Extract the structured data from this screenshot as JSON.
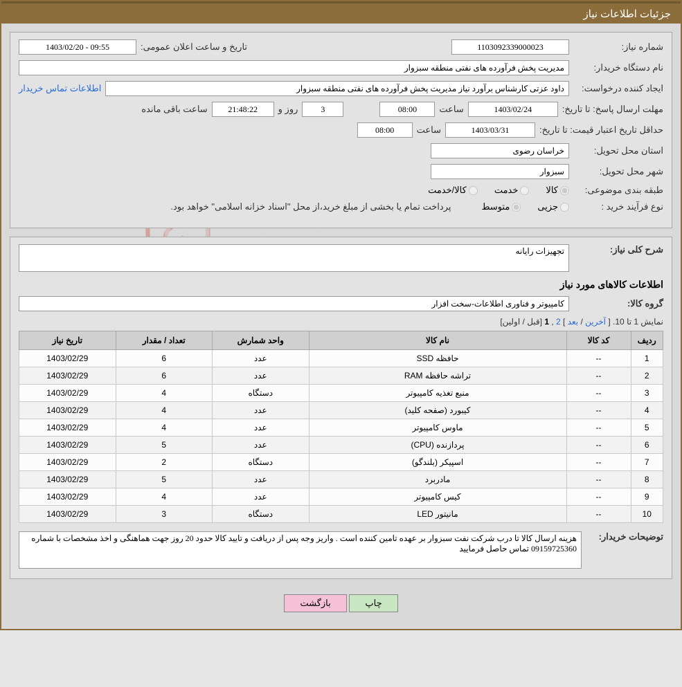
{
  "header": {
    "title": "جزئیات اطلاعات نیاز"
  },
  "info": {
    "need_no_label": "شماره نیاز:",
    "need_no": "1103092339000023",
    "announce_label": "تاریخ و ساعت اعلان عمومی:",
    "announce_value": "1403/02/20 - 09:55",
    "buyer_org_label": "نام دستگاه خریدار:",
    "buyer_org": "مدیریت پخش فرآورده های نفتی منطقه سبزوار",
    "requester_label": "ایجاد کننده درخواست:",
    "requester": "داود عزتی کارشناس برآورد نیاز مدیریت پخش فرآورده های نفتی منطقه سبزوار",
    "contact_link": "اطلاعات تماس خریدار",
    "deadline_label": "مهلت ارسال پاسخ: تا تاریخ:",
    "deadline_date": "1403/02/24",
    "time_label": "ساعت",
    "deadline_time": "08:00",
    "days_remain": "3",
    "days_label": "روز و",
    "clock": "21:48:22",
    "remain_label": "ساعت باقی مانده",
    "validity_label": "حداقل تاریخ اعتبار قیمت: تا تاریخ:",
    "validity_date": "1403/03/31",
    "validity_time": "08:00",
    "province_label": "استان محل تحویل:",
    "province": "خراسان رضوی",
    "city_label": "شهر محل تحویل:",
    "city": "سبزوار",
    "category_label": "طبقه بندی موضوعی:",
    "cat_goods": "کالا",
    "cat_service": "خدمت",
    "cat_both": "کالا/خدمت",
    "procure_label": "نوع فرآیند خرید :",
    "proc_minor": "جزیی",
    "proc_medium": "متوسط",
    "procure_note": "پرداخت تمام یا بخشی از مبلغ خرید،از محل \"اسناد خزانه اسلامی\" خواهد بود."
  },
  "need": {
    "desc_label": "شرح کلی نیاز:",
    "desc": "تجهیزات رایانه",
    "goods_title": "اطلاعات کالاهای مورد نیاز",
    "group_label": "گروه کالا:",
    "group": "کامپیوتر و فناوری اطلاعات-سخت افزار"
  },
  "pager": {
    "text_pre": "نمایش 1 تا 10. [ ",
    "last": "آخرین",
    "sep1": " / ",
    "next": "بعد",
    "sep2": " ] ",
    "p2": "2",
    "comma": " ,",
    "p1": "1",
    "text_post": " [قبل / اولین]"
  },
  "table": {
    "cols": [
      "ردیف",
      "کد کالا",
      "نام کالا",
      "واحد شمارش",
      "تعداد / مقدار",
      "تاریخ نیاز"
    ],
    "rows": [
      [
        "1",
        "--",
        "حافظه SSD",
        "عدد",
        "6",
        "1403/02/29"
      ],
      [
        "2",
        "--",
        "تراشه حافظه RAM",
        "عدد",
        "6",
        "1403/02/29"
      ],
      [
        "3",
        "--",
        "منبع تغذیه کامپیوتر",
        "دستگاه",
        "4",
        "1403/02/29"
      ],
      [
        "4",
        "--",
        "کیبورد (صفحه کلید)",
        "عدد",
        "4",
        "1403/02/29"
      ],
      [
        "5",
        "--",
        "ماوس کامپیوتر",
        "عدد",
        "4",
        "1403/02/29"
      ],
      [
        "6",
        "--",
        "پردازنده (CPU)",
        "عدد",
        "5",
        "1403/02/29"
      ],
      [
        "7",
        "--",
        "اسپیکر (بلندگو)",
        "دستگاه",
        "2",
        "1403/02/29"
      ],
      [
        "8",
        "--",
        "مادربرد",
        "عدد",
        "5",
        "1403/02/29"
      ],
      [
        "9",
        "--",
        "کیس کامپیوتر",
        "عدد",
        "4",
        "1403/02/29"
      ],
      [
        "10",
        "--",
        "مانیتور LED",
        "دستگاه",
        "3",
        "1403/02/29"
      ]
    ]
  },
  "notes": {
    "label": "توضیحات خریدار:",
    "text": "هزینه ارسال کالا تا درب شرکت نفت سبزوار بر عهده تامین کننده است . واریز وجه پس از دریافت و تایید کالا حدود 20 روز جهت هماهنگی و اخذ مشخصات با شماره 09159725360 تماس حاصل فرمایید"
  },
  "buttons": {
    "print": "چاپ",
    "back": "بازگشت"
  },
  "watermark": "AriaTender.net",
  "colors": {
    "header_bg": "#8a6d3b",
    "border": "#8a6d3b",
    "page_bg": "#e6e6e6",
    "box_bg": "#e3e3e3",
    "th_bg": "#d0d0d0",
    "link": "#2a6bd6"
  }
}
